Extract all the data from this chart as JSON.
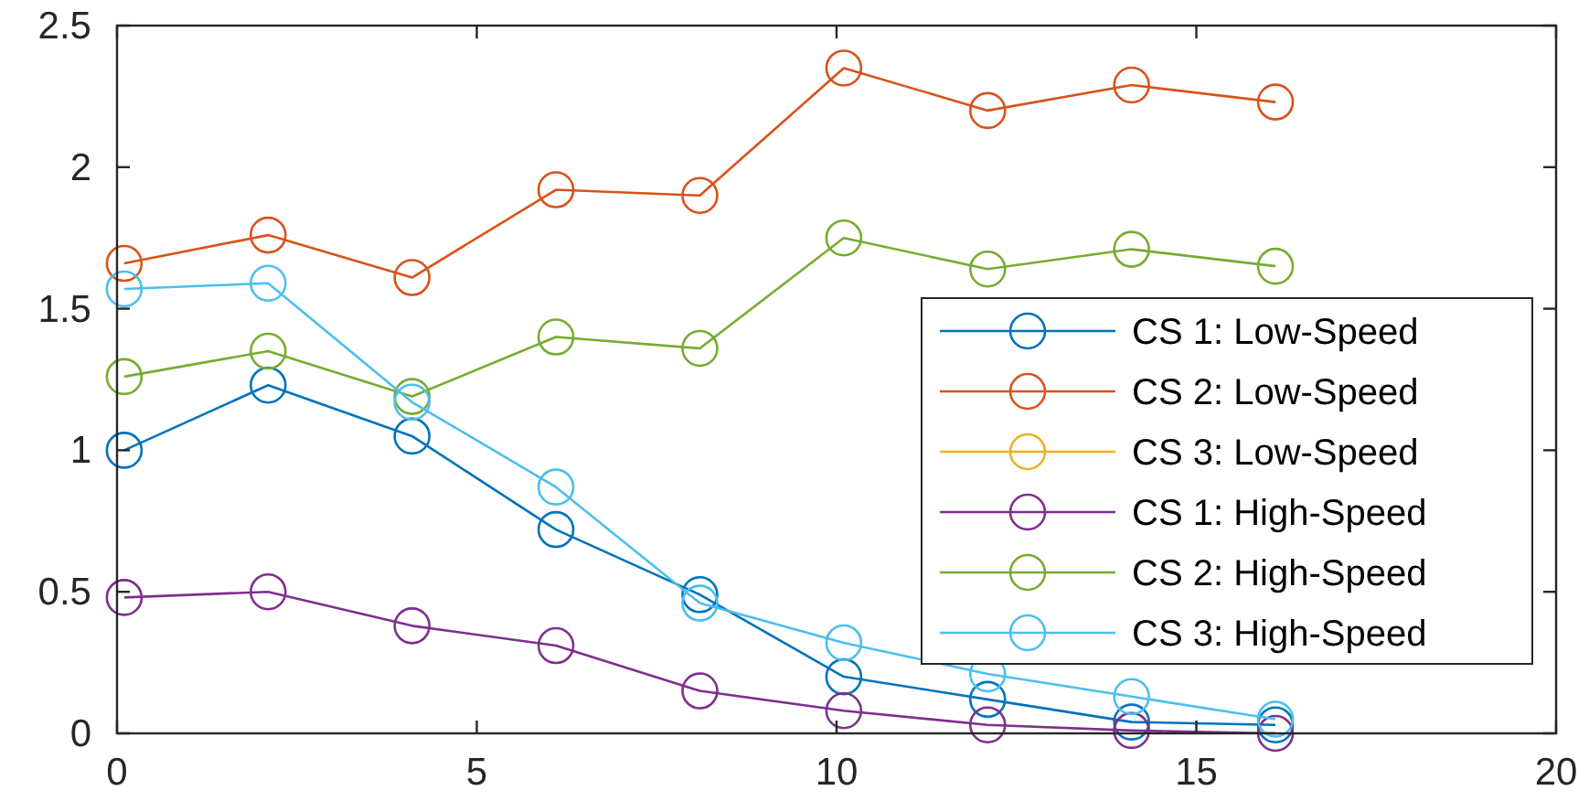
{
  "chart_data": {
    "type": "line",
    "x": [
      0.1,
      2.1,
      4.1,
      6.1,
      8.1,
      10.1,
      12.1,
      14.1,
      16.1
    ],
    "xlim": [
      0,
      20
    ],
    "xticks": [
      0,
      5,
      10,
      15,
      20
    ],
    "ylim": [
      0,
      2.5
    ],
    "yticks": [
      0,
      0.5,
      1,
      1.5,
      2,
      2.5
    ],
    "grid": false,
    "legend": "right",
    "marker": "circle",
    "line_style": "solid",
    "series": [
      {
        "name": "CS 1: Low-Speed",
        "color": "#0072bd",
        "values": [
          1.0,
          1.23,
          1.05,
          0.72,
          0.49,
          0.2,
          0.12,
          0.04,
          0.03
        ]
      },
      {
        "name": "CS 2: Low-Speed",
        "color": "#d95319",
        "values": [
          1.66,
          1.76,
          1.61,
          1.92,
          1.9,
          2.35,
          2.2,
          2.29,
          2.23
        ]
      },
      {
        "name": "CS 3: Low-Speed",
        "color": "#edb120",
        "values": [
          null,
          null,
          null,
          null,
          null,
          null,
          null,
          null,
          null
        ]
      },
      {
        "name": "CS 1: High-Speed",
        "color": "#7e2f8e",
        "values": [
          0.48,
          0.5,
          0.38,
          0.31,
          0.15,
          0.08,
          0.03,
          0.01,
          0.0
        ]
      },
      {
        "name": "CS 2: High-Speed",
        "color": "#77ac30",
        "values": [
          1.26,
          1.35,
          1.19,
          1.4,
          1.36,
          1.75,
          1.64,
          1.71,
          1.65
        ]
      },
      {
        "name": "CS 3: High-Speed",
        "color": "#4dbeee",
        "values": [
          1.57,
          1.59,
          1.17,
          0.87,
          0.46,
          0.32,
          0.21,
          0.13,
          0.05
        ]
      }
    ]
  }
}
